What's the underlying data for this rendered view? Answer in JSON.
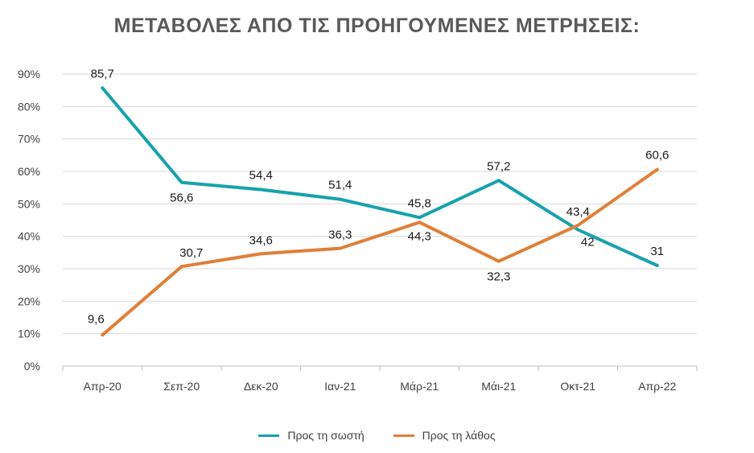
{
  "title": "ΜΕΤΑΒΟΛΕΣ ΑΠΟ ΤΙΣ ΠΡΟΗΓΟΥΜΕΝΕΣ ΜΕΤΡΗΣΕΙΣ:",
  "chart_data": {
    "type": "line",
    "title": "ΜΕΤΑΒΟΛΕΣ ΑΠΟ ΤΙΣ ΠΡΟΗΓΟΥΜΕΝΕΣ ΜΕΤΡΗΣΕΙΣ:",
    "categories": [
      "Απρ-20",
      "Σεπ-20",
      "Δεκ-20",
      "Ιαν-21",
      "Μάρ-21",
      "Μάι-21",
      "Οκτ-21",
      "Απρ-22"
    ],
    "ylim": [
      0,
      90
    ],
    "yticks": [
      "0%",
      "10%",
      "20%",
      "30%",
      "40%",
      "50%",
      "60%",
      "70%",
      "80%",
      "90%"
    ],
    "grid": true,
    "legend_position": "bottom",
    "series": [
      {
        "name": "Προς τη σωστή",
        "color": "#17a2ad",
        "values": [
          85.7,
          56.6,
          54.4,
          51.4,
          45.8,
          57.2,
          42,
          31
        ],
        "labels": [
          "85,7",
          "56,6",
          "54,4",
          "51,4",
          "45,8",
          "57,2",
          "42",
          "31"
        ]
      },
      {
        "name": "Προς τη λάθος",
        "color": "#e07f38",
        "values": [
          9.6,
          30.7,
          34.6,
          36.3,
          44.3,
          32.3,
          43.4,
          60.6
        ],
        "labels": [
          "9,6",
          "30,7",
          "34,6",
          "36,3",
          "44,3",
          "32,3",
          "43,4",
          "60,6"
        ]
      }
    ]
  }
}
